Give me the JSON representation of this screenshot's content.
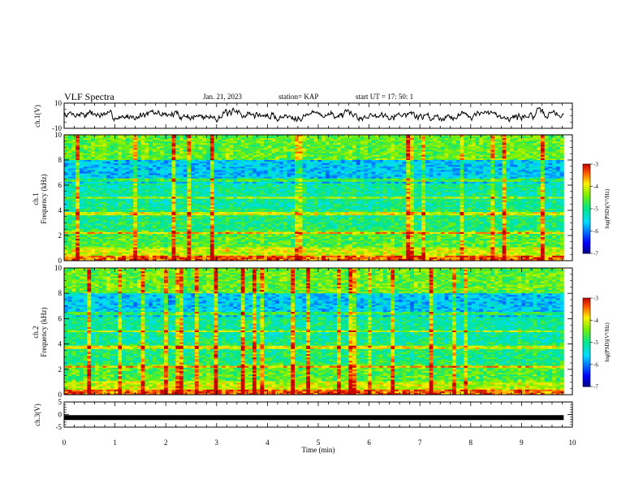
{
  "header": {
    "title": "VLF Spectra",
    "date": "Jan. 21, 2023",
    "station": "station= KAP",
    "start": "start  UT =   17: 50: 1"
  },
  "chart_data": [
    {
      "type": "line",
      "name": "ch1-waveform",
      "ylabel": "ch.1(V)",
      "ylim": [
        -10,
        10
      ],
      "yticks": [
        "10",
        "-10"
      ],
      "xlim": [
        0,
        10
      ],
      "x_extent_end": 9.83,
      "noise": {
        "mean": 0.4,
        "amplitude": 6.5,
        "seed": 7
      }
    },
    {
      "type": "heatmap",
      "name": "ch1-spectrogram",
      "ylabel_line1": "ch.1",
      "ylabel_line2": "Frequency (kHz)",
      "ylim": [
        0,
        10
      ],
      "yticks": [
        "0",
        "2",
        "4",
        "6",
        "8",
        "10"
      ],
      "xlim": [
        0,
        10
      ],
      "x_extent_end": 9.83,
      "colorbar": {
        "label": "log(PSD)(V²/Hz)",
        "range": [
          -7,
          -3
        ],
        "ticks": [
          "-3",
          "-4",
          "-5",
          "-6",
          "-7"
        ]
      },
      "seed": 11
    },
    {
      "type": "heatmap",
      "name": "ch2-spectrogram",
      "ylabel_line1": "ch.2",
      "ylabel_line2": "Frequency (kHz)",
      "ylim": [
        0,
        10
      ],
      "yticks": [
        "0",
        "2",
        "4",
        "6",
        "8",
        "10"
      ],
      "xlim": [
        0,
        10
      ],
      "x_extent_end": 9.83,
      "colorbar": {
        "label": "log(PSD)(V²/Hz)",
        "range": [
          -7,
          -3
        ],
        "ticks": [
          "-3",
          "-4",
          "-5",
          "-6",
          "-7"
        ]
      },
      "seed": 23
    },
    {
      "type": "line",
      "name": "ch3-voltage",
      "ylabel": "ch.3(V)",
      "ylim": [
        -5,
        5
      ],
      "yticks": [
        "5",
        "0",
        "-5"
      ],
      "xlim": [
        0,
        10
      ],
      "x_extent_end": 9.83,
      "constant_value": -1.2,
      "xlabel": "Time (min)",
      "xticks": [
        "0",
        "1",
        "2",
        "3",
        "4",
        "5",
        "6",
        "7",
        "8",
        "9",
        "10"
      ]
    }
  ]
}
